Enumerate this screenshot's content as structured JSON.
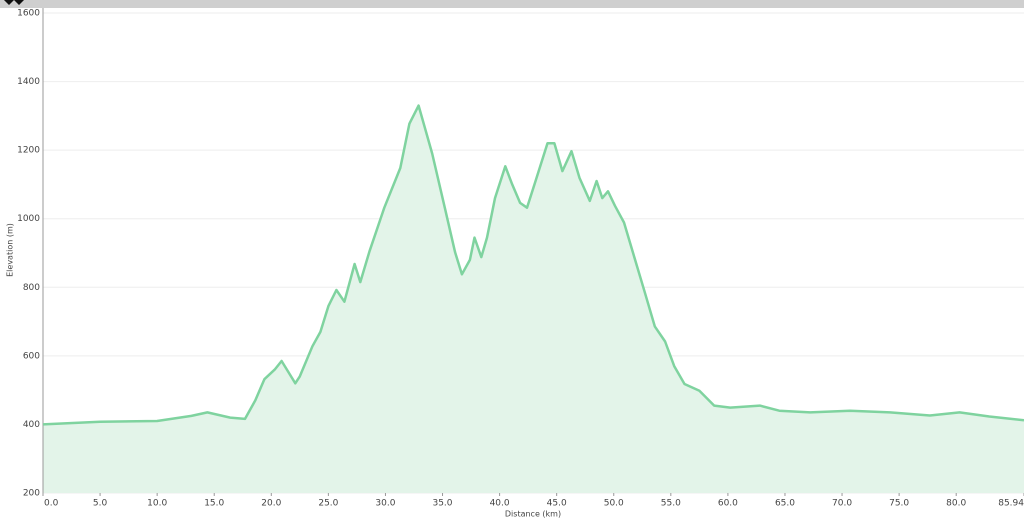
{
  "chart_data": {
    "type": "area",
    "x_label": "Distance (km)",
    "y_label": "Elevation (m)",
    "color": "#7fd39f",
    "fill": "#e3f4e9",
    "xlim": [
      0,
      85.94
    ],
    "ylim": [
      200,
      1600
    ],
    "yticks": [
      200,
      400,
      600,
      800,
      1000,
      1200,
      1400,
      1600
    ],
    "xticks": [
      {
        "value": 0,
        "label": "0.0"
      },
      {
        "value": 5,
        "label": "5.0"
      },
      {
        "value": 10,
        "label": "10.0"
      },
      {
        "value": 15,
        "label": "15.0"
      },
      {
        "value": 20,
        "label": "20.0"
      },
      {
        "value": 25,
        "label": "25.0"
      },
      {
        "value": 30,
        "label": "30.0"
      },
      {
        "value": 35,
        "label": "35.0"
      },
      {
        "value": 40,
        "label": "40.0"
      },
      {
        "value": 45,
        "label": "45.0"
      },
      {
        "value": 50,
        "label": "50.0"
      },
      {
        "value": 55,
        "label": "55.0"
      },
      {
        "value": 60,
        "label": "60.0"
      },
      {
        "value": 65,
        "label": "65.0"
      },
      {
        "value": 70,
        "label": "70.0"
      },
      {
        "value": 75,
        "label": "75.0"
      },
      {
        "value": 80,
        "label": "80.0"
      },
      85.94
    ],
    "grid": true,
    "x": [
      0,
      5,
      10,
      13,
      14.4,
      16.4,
      17.7,
      18.6,
      19.4,
      20.3,
      20.9,
      22.1,
      22.5,
      23.6,
      24.3,
      25,
      25.7,
      26.4,
      27.3,
      27.8,
      28.6,
      29.9,
      31.3,
      32.1,
      32.9,
      34.1,
      35.2,
      36.1,
      36.7,
      37.4,
      37.8,
      38.4,
      38.9,
      39.6,
      40.5,
      41.1,
      41.8,
      42.4,
      43.1,
      44.2,
      44.8,
      45.5,
      46.3,
      47,
      47.9,
      48.5,
      49,
      49.5,
      50.1,
      50.9,
      51.8,
      52.7,
      53.6,
      54.5,
      55.3,
      56.2,
      57.5,
      58.8,
      60.2,
      62.8,
      64.5,
      67.2,
      70.7,
      74.2,
      77.7,
      80.3,
      82.9,
      85.94
    ],
    "values": [
      400,
      408,
      410,
      425,
      435,
      420,
      416,
      470,
      532,
      560,
      585,
      520,
      540,
      628,
      670,
      745,
      792,
      758,
      868,
      815,
      905,
      1032,
      1148,
      1277,
      1330,
      1190,
      1032,
      902,
      838,
      880,
      945,
      888,
      945,
      1060,
      1153,
      1100,
      1046,
      1032,
      1105,
      1220,
      1220,
      1139,
      1197,
      1119,
      1052,
      1110,
      1060,
      1080,
      1038,
      989,
      888,
      787,
      686,
      642,
      570,
      518,
      498,
      455,
      449,
      455,
      440,
      435,
      440,
      435,
      426,
      435,
      423,
      412
    ]
  }
}
